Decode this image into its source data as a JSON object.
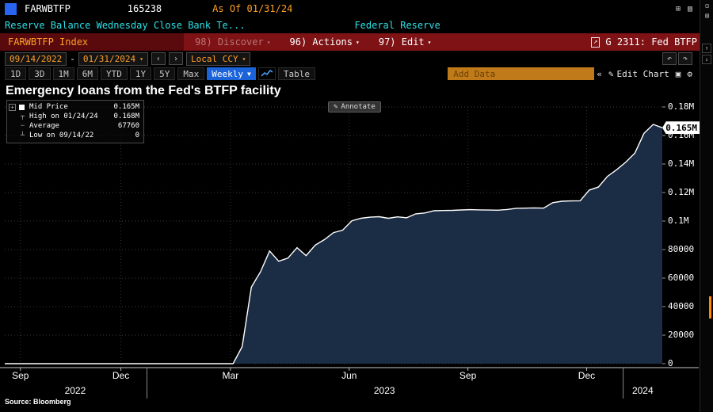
{
  "window": {
    "ticker": "FARWBTFP",
    "code": "165238",
    "as_of_label": "As Of 01/31/24",
    "description": "Reserve Balance Wednesday Close Bank Te...",
    "source_name": "Federal Reserve"
  },
  "toolbar": {
    "security_field": "FARWBTFP Index",
    "discover_label": "98) Discover",
    "actions_label": "96) Actions",
    "edit_label": "97) Edit",
    "chart_id": "G 2311: Fed BTFP"
  },
  "range_bar": {
    "start_date": "09/14/2022",
    "separator": "-",
    "end_date": "01/31/2024",
    "currency": "Local CCY"
  },
  "period_tabs": [
    "1D",
    "3D",
    "1M",
    "6M",
    "YTD",
    "1Y",
    "5Y",
    "Max"
  ],
  "frequency": "Weekly",
  "table_label": "Table",
  "add_data_label": "Add Data",
  "edit_chart_label": "Edit Chart",
  "chart": {
    "title": "Emergency loans from the Fed's BTFP facility",
    "annotate_label": "Annotate",
    "last_price_label": "0.165M",
    "legend": [
      {
        "label": "Mid Price",
        "value": "0.165M"
      },
      {
        "label": "High on 01/24/24",
        "value": "0.168M"
      },
      {
        "label": "Average",
        "value": "67760"
      },
      {
        "label": "Low on 09/14/22",
        "value": "0"
      }
    ],
    "source_label": "Source: Bloomberg"
  },
  "chart_data": {
    "type": "area",
    "title": "Emergency loans from the Fed's BTFP facility",
    "series_name": "FARWBTFP Index - Mid Price",
    "xlabel": "",
    "ylabel": "",
    "x_start": "2022-09-14",
    "x_end": "2024-01-31",
    "ylim": [
      0,
      186000
    ],
    "grid": true,
    "legend_position": "top-left",
    "area_color": "#1b2c45",
    "line_color": "#ffffff",
    "y_ticks": [
      {
        "v": 0,
        "label": "0"
      },
      {
        "v": 20000,
        "label": "20000"
      },
      {
        "v": 40000,
        "label": "40000"
      },
      {
        "v": 60000,
        "label": "60000"
      },
      {
        "v": 80000,
        "label": "80000"
      },
      {
        "v": 100000,
        "label": "0.1M"
      },
      {
        "v": 120000,
        "label": "0.12M"
      },
      {
        "v": 140000,
        "label": "0.14M"
      },
      {
        "v": 160000,
        "label": "0.16M"
      },
      {
        "v": 180000,
        "label": "0.18M"
      }
    ],
    "x_ticks": [
      {
        "d": "2022-09-26",
        "label": "Sep"
      },
      {
        "d": "2022-12-12",
        "label": "Dec"
      },
      {
        "d": "2023-03-06",
        "label": "Mar"
      },
      {
        "d": "2023-06-05",
        "label": "Jun"
      },
      {
        "d": "2023-09-04",
        "label": "Sep"
      },
      {
        "d": "2023-12-04",
        "label": "Dec"
      }
    ],
    "year_bands": [
      {
        "label": "2022",
        "start": "2022-09-14",
        "end": "2022-12-31"
      },
      {
        "label": "2023",
        "start": "2023-01-01",
        "end": "2023-12-31"
      },
      {
        "label": "2024",
        "start": "2024-01-01",
        "end": "2024-01-31"
      }
    ],
    "points": [
      [
        "2022-09-14",
        0
      ],
      [
        "2022-09-21",
        0
      ],
      [
        "2022-09-28",
        0
      ],
      [
        "2022-10-05",
        0
      ],
      [
        "2022-10-12",
        0
      ],
      [
        "2022-10-19",
        0
      ],
      [
        "2022-10-26",
        0
      ],
      [
        "2022-11-02",
        0
      ],
      [
        "2022-11-09",
        0
      ],
      [
        "2022-11-16",
        0
      ],
      [
        "2022-11-23",
        0
      ],
      [
        "2022-11-30",
        0
      ],
      [
        "2022-12-07",
        0
      ],
      [
        "2022-12-14",
        0
      ],
      [
        "2022-12-21",
        0
      ],
      [
        "2022-12-28",
        0
      ],
      [
        "2023-01-04",
        0
      ],
      [
        "2023-01-11",
        0
      ],
      [
        "2023-01-18",
        0
      ],
      [
        "2023-01-25",
        0
      ],
      [
        "2023-02-01",
        0
      ],
      [
        "2023-02-08",
        0
      ],
      [
        "2023-02-15",
        0
      ],
      [
        "2023-02-22",
        0
      ],
      [
        "2023-03-01",
        0
      ],
      [
        "2023-03-08",
        0
      ],
      [
        "2023-03-15",
        11943
      ],
      [
        "2023-03-22",
        53669
      ],
      [
        "2023-03-29",
        64403
      ],
      [
        "2023-04-05",
        79021
      ],
      [
        "2023-04-12",
        71837
      ],
      [
        "2023-04-19",
        73982
      ],
      [
        "2023-04-26",
        81327
      ],
      [
        "2023-05-03",
        75778
      ],
      [
        "2023-05-10",
        83101
      ],
      [
        "2023-05-17",
        87006
      ],
      [
        "2023-05-24",
        91907
      ],
      [
        "2023-05-31",
        93615
      ],
      [
        "2023-06-07",
        100161
      ],
      [
        "2023-06-14",
        101969
      ],
      [
        "2023-06-21",
        102735
      ],
      [
        "2023-06-28",
        103081
      ],
      [
        "2023-07-05",
        101959
      ],
      [
        "2023-07-12",
        102930
      ],
      [
        "2023-07-19",
        102253
      ],
      [
        "2023-07-26",
        105078
      ],
      [
        "2023-08-02",
        105678
      ],
      [
        "2023-08-09",
        107213
      ],
      [
        "2023-08-16",
        107394
      ],
      [
        "2023-08-23",
        107527
      ],
      [
        "2023-08-30",
        107777
      ],
      [
        "2023-09-06",
        107993
      ],
      [
        "2023-09-13",
        107821
      ],
      [
        "2023-09-20",
        107707
      ],
      [
        "2023-09-27",
        107600
      ],
      [
        "2023-10-04",
        108124
      ],
      [
        "2023-10-11",
        108956
      ],
      [
        "2023-10-18",
        109074
      ],
      [
        "2023-10-25",
        109197
      ],
      [
        "2023-11-01",
        109076
      ],
      [
        "2023-11-08",
        112885
      ],
      [
        "2023-11-15",
        113915
      ],
      [
        "2023-11-22",
        114108
      ],
      [
        "2023-11-29",
        114243
      ],
      [
        "2023-12-06",
        121720
      ],
      [
        "2023-12-13",
        123833
      ],
      [
        "2023-12-20",
        131346
      ],
      [
        "2023-12-27",
        135995
      ],
      [
        "2024-01-03",
        141329
      ],
      [
        "2024-01-10",
        147653
      ],
      [
        "2024-01-17",
        161504
      ],
      [
        "2024-01-24",
        167776
      ],
      [
        "2024-01-31",
        165438
      ]
    ]
  }
}
